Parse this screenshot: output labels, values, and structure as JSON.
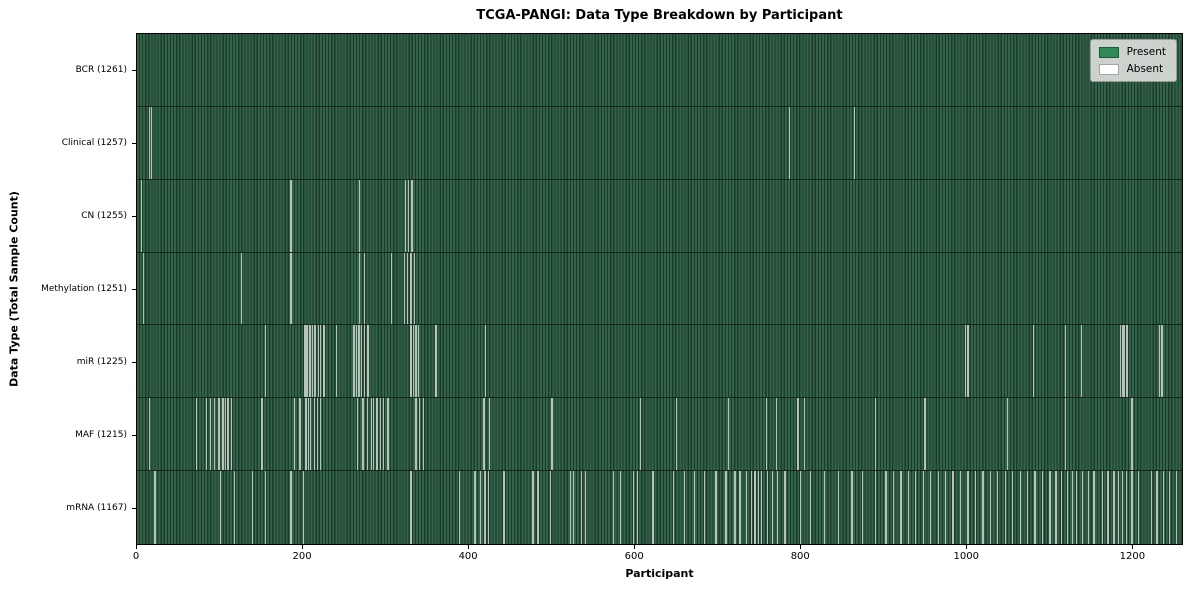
{
  "chart_data": {
    "type": "heatmap",
    "title": "TCGA-PANGI: Data Type Breakdown by Participant",
    "xlabel": "Participant",
    "ylabel": "Data Type (Total Sample Count)",
    "x_ticks": [
      0,
      200,
      400,
      600,
      800,
      1000,
      1200
    ],
    "x_max": 1261,
    "grid": false,
    "legend_position": "upper right",
    "legend": [
      {
        "label": "Present",
        "color": "#2e8b57"
      },
      {
        "label": "Absent",
        "color": "#ffffff"
      }
    ],
    "colors": {
      "present_stripe_light": "#316449",
      "present_stripe_dark": "#1d3a2b",
      "absent_line": "#c3cbc4",
      "legend_bg": "#dadcda",
      "axis": "#000000"
    },
    "rows": [
      {
        "label": "BCR (1261)",
        "total": 1261,
        "absent": []
      },
      {
        "label": "Clinical (1257)",
        "total": 1257,
        "absent": [
          14,
          17,
          787,
          865
        ]
      },
      {
        "label": "CN (1255)",
        "total": 1255,
        "absent": [
          5,
          185,
          268,
          323,
          327,
          331
        ]
      },
      {
        "label": "Methylation (1251)",
        "total": 1251,
        "absent": [
          7,
          125,
          185,
          268,
          274,
          306,
          322,
          326,
          330,
          334
        ]
      },
      {
        "label": "miR (1225)",
        "total": 1225,
        "absent": [
          154,
          201,
          203,
          205,
          207,
          209,
          211,
          213,
          215,
          218,
          221,
          225,
          240,
          261,
          264,
          267,
          270,
          274,
          278,
          330,
          333,
          336,
          339,
          360,
          420,
          999,
          1002,
          1081,
          1120,
          1139,
          1186,
          1189,
          1191,
          1194,
          1233,
          1236
        ]
      },
      {
        "label": "MAF (1215)",
        "total": 1215,
        "absent": [
          14,
          71,
          83,
          88,
          93,
          98,
          103,
          106,
          109,
          113,
          150,
          189,
          196,
          203,
          206,
          209,
          213,
          217,
          221,
          265,
          272,
          277,
          282,
          285,
          289,
          293,
          297,
          302,
          336,
          340,
          345,
          418,
          425,
          500,
          607,
          650,
          713,
          759,
          771,
          797,
          805,
          890,
          950,
          1050,
          1120,
          1200
        ]
      },
      {
        "label": "mRNA (1167)",
        "total": 1167,
        "absent": [
          21,
          100,
          117,
          139,
          154,
          185,
          200,
          330,
          388,
          407,
          414,
          419,
          423,
          442,
          477,
          483,
          498,
          522,
          526,
          536,
          540,
          574,
          583,
          598,
          603,
          622,
          647,
          660,
          672,
          684,
          698,
          710,
          721,
          727,
          735,
          741,
          745,
          749,
          753,
          760,
          766,
          772,
          781,
          800,
          812,
          829,
          846,
          862,
          875,
          890,
          903,
          912,
          921,
          930,
          939,
          948,
          957,
          966,
          975,
          984,
          993,
          1002,
          1011,
          1020,
          1029,
          1038,
          1047,
          1056,
          1065,
          1074,
          1083,
          1092,
          1101,
          1108,
          1115,
          1122,
          1128,
          1133,
          1140,
          1147,
          1154,
          1164,
          1171,
          1178,
          1184,
          1188,
          1193,
          1200,
          1208,
          1223,
          1230,
          1238,
          1245,
          1254
        ]
      }
    ]
  }
}
